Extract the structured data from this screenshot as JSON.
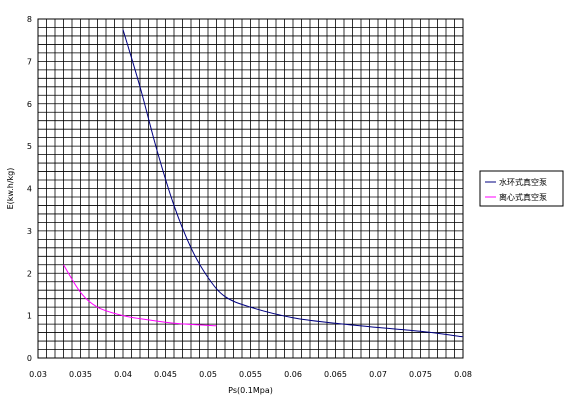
{
  "chart_data": {
    "type": "line",
    "xlabel": "Ps(0.1Mpa)",
    "ylabel": "E(kw.h/kg)",
    "xlim": [
      0.03,
      0.08
    ],
    "ylim": [
      0,
      8
    ],
    "x_ticks": [
      "0.03",
      "0.035",
      "0.04",
      "0.045",
      "0.05",
      "0.055",
      "0.06",
      "0.065",
      "0.07",
      "0.075",
      "0.08"
    ],
    "y_ticks": [
      "0",
      "1",
      "2",
      "3",
      "4",
      "5",
      "6",
      "7",
      "8"
    ],
    "grid": true,
    "legend_position": "right",
    "series": [
      {
        "name": "水环式真空泵",
        "color": "#000080",
        "points": [
          [
            0.04,
            7.75
          ],
          [
            0.042,
            6.4
          ],
          [
            0.044,
            4.9
          ],
          [
            0.046,
            3.6
          ],
          [
            0.048,
            2.6
          ],
          [
            0.05,
            1.9
          ],
          [
            0.052,
            1.45
          ],
          [
            0.055,
            1.2
          ],
          [
            0.06,
            0.95
          ],
          [
            0.065,
            0.82
          ],
          [
            0.07,
            0.72
          ],
          [
            0.075,
            0.63
          ],
          [
            0.08,
            0.5
          ]
        ]
      },
      {
        "name": "离心式真空泵",
        "color": "#ff00ff",
        "points": [
          [
            0.033,
            2.2
          ],
          [
            0.035,
            1.55
          ],
          [
            0.037,
            1.2
          ],
          [
            0.04,
            1.0
          ],
          [
            0.043,
            0.9
          ],
          [
            0.046,
            0.82
          ],
          [
            0.05,
            0.77
          ],
          [
            0.051,
            0.76
          ]
        ]
      }
    ]
  }
}
